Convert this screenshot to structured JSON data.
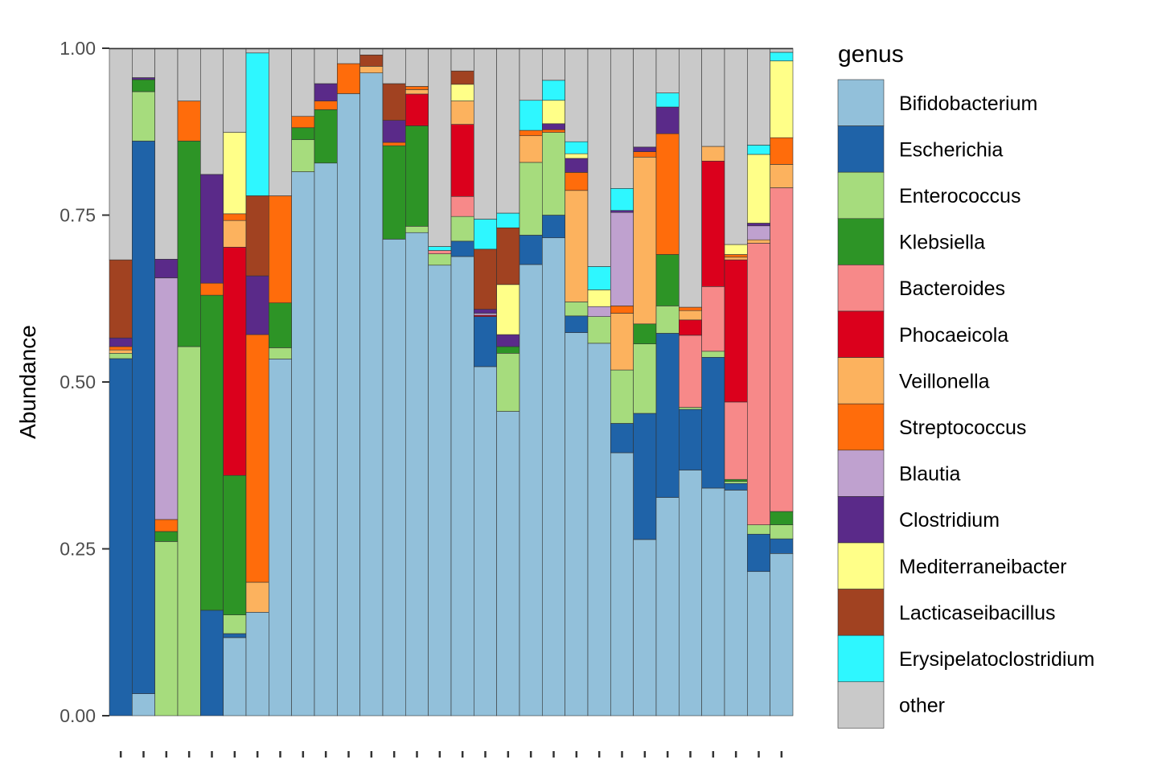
{
  "chart_data": {
    "type": "bar",
    "stacked": true,
    "ylabel": "Abundance",
    "ylim": [
      0,
      1
    ],
    "yticks": [
      0.0,
      0.25,
      0.5,
      0.75,
      1.0
    ],
    "ytick_labels": [
      "0.00",
      "0.25",
      "0.50",
      "0.75",
      "1.00"
    ],
    "categories": [
      "",
      "",
      "",
      "",
      "",
      "",
      "",
      "",
      "",
      "",
      "",
      "",
      "",
      "",
      "",
      "",
      "",
      "",
      "",
      "",
      "",
      "",
      "",
      "",
      "",
      "",
      "",
      "",
      "",
      ""
    ],
    "legend": {
      "title": "genus",
      "position": "right"
    },
    "series": [
      {
        "name": "Bifidobacterium",
        "color": "#92C0DA",
        "values": [
          0,
          0.033,
          0,
          0,
          0,
          0.117,
          0.155,
          0.573,
          0.815,
          0.828,
          0.932,
          0.963,
          0.714,
          0.76,
          0.675,
          0.688,
          0.523,
          0.456,
          0.676,
          0.716,
          0.574,
          0.558,
          0.394,
          0.264,
          0.327,
          0.368,
          0.341,
          0.338,
          0.216,
          0.243
        ]
      },
      {
        "name": "Escherichia",
        "color": "#1F63A8",
        "values": [
          0.535,
          0.828,
          0,
          0,
          0.158,
          0.006,
          0,
          0,
          0,
          0,
          0,
          0,
          0,
          0,
          0,
          0.023,
          0.075,
          0,
          0.044,
          0.034,
          0.025,
          0,
          0.044,
          0.189,
          0.246,
          0.091,
          0.196,
          0.01,
          0.056,
          0.022
        ]
      },
      {
        "name": "Enterococcus",
        "color": "#A6DC7D",
        "values": [
          0.008,
          0.074,
          0.261,
          0.553,
          0,
          0.028,
          0,
          0.018,
          0.048,
          0,
          0,
          0,
          0,
          0.01,
          0.017,
          0.037,
          0,
          0.087,
          0.109,
          0.124,
          0.021,
          0.04,
          0.08,
          0.104,
          0.041,
          0.003,
          0.009,
          0.003,
          0.014,
          0.021
        ]
      },
      {
        "name": "Klebsiella",
        "color": "#2D9426",
        "values": [
          0,
          0.018,
          0.015,
          0.308,
          0.472,
          0.209,
          0,
          0.072,
          0.018,
          0.08,
          0,
          0,
          0.14,
          0.158,
          0,
          0,
          0,
          0.01,
          0,
          0,
          0,
          0,
          0,
          0.03,
          0.077,
          0,
          0,
          0.003,
          0,
          0.02
        ]
      },
      {
        "name": "Bacteroides",
        "color": "#F78989",
        "values": [
          0,
          0,
          0,
          0,
          0,
          0,
          0,
          0,
          0,
          0,
          0,
          0,
          0,
          0,
          0.005,
          0.03,
          0,
          0,
          0,
          0,
          0,
          0,
          0,
          0,
          0,
          0.108,
          0.097,
          0.116,
          0.422,
          0.485
        ]
      },
      {
        "name": "Phocaeicola",
        "color": "#DB001C",
        "values": [
          0,
          0,
          0,
          0,
          0,
          0.342,
          0,
          0,
          0,
          0,
          0,
          0,
          0,
          0.05,
          0,
          0.108,
          0.002,
          0,
          0,
          0,
          0,
          0,
          0,
          0,
          0,
          0.023,
          0.188,
          0.213,
          0,
          0
        ]
      },
      {
        "name": "Veillonella",
        "color": "#FCB25E",
        "values": [
          0.005,
          0,
          0,
          0,
          0,
          0.04,
          0.045,
          0,
          0,
          0,
          0,
          0.01,
          0,
          0.007,
          0,
          0.035,
          0,
          0,
          0.04,
          0,
          0.167,
          0,
          0.085,
          0.25,
          0,
          0.014,
          0.022,
          0.004,
          0.005,
          0.035
        ]
      },
      {
        "name": "Streptococcus",
        "color": "#FF6C0B",
        "values": [
          0.005,
          0,
          0.018,
          0.06,
          0.018,
          0.01,
          0.371,
          0.172,
          0.017,
          0.013,
          0.045,
          0,
          0.005,
          0.005,
          0,
          0,
          0,
          0,
          0.008,
          0.004,
          0.027,
          0,
          0.011,
          0.008,
          0.181,
          0.005,
          0,
          0.004,
          0,
          0.04
        ]
      },
      {
        "name": "Blautia",
        "color": "#BFA1CF",
        "values": [
          0,
          0,
          0.362,
          0,
          0,
          0,
          0,
          0,
          0,
          0,
          0,
          0,
          0,
          0,
          0,
          0,
          0.003,
          0,
          0,
          0,
          0,
          0.015,
          0.14,
          0,
          0,
          0,
          0,
          0,
          0.021,
          0
        ]
      },
      {
        "name": "Clostridium",
        "color": "#5A2A89",
        "values": [
          0.013,
          0.003,
          0.028,
          0,
          0.163,
          0,
          0.088,
          0,
          0,
          0.026,
          0,
          0,
          0.033,
          0,
          0,
          0,
          0.006,
          0.018,
          0,
          0.009,
          0.021,
          0,
          0.003,
          0.007,
          0.04,
          0,
          0,
          0,
          0.004,
          0
        ]
      },
      {
        "name": "Mediterraneibacter",
        "color": "#FFFF88",
        "values": [
          0,
          0,
          0,
          0,
          0,
          0.122,
          0,
          0,
          0,
          0,
          0,
          0,
          0,
          0,
          0,
          0.025,
          0,
          0.075,
          0,
          0.035,
          0.007,
          0.025,
          0,
          0,
          0,
          0,
          0,
          0.015,
          0.103,
          0.115
        ]
      },
      {
        "name": "Lacticaseibacillus",
        "color": "#A14221",
        "values": [
          0.117,
          0,
          0,
          0,
          0,
          0,
          0.12,
          0,
          0,
          0,
          0,
          0.017,
          0.055,
          0,
          0,
          0.02,
          0.09,
          0.085,
          0,
          0,
          0,
          0,
          0,
          0,
          0,
          0,
          0,
          0,
          0,
          0
        ]
      },
      {
        "name": "Erysipelatoclostridium",
        "color": "#2EF7FF",
        "values": [
          0,
          0,
          0,
          0,
          0,
          0,
          0.214,
          0,
          0,
          0,
          0,
          0,
          0,
          0,
          0.006,
          0,
          0.045,
          0.022,
          0.045,
          0.03,
          0.018,
          0.035,
          0.033,
          0,
          0.021,
          0,
          0,
          0,
          0.014,
          0.013
        ]
      },
      {
        "name": "other",
        "color": "#C9C9C9",
        "values": [
          0.317,
          0.044,
          0.316,
          0.079,
          0.189,
          0.126,
          0.007,
          0.237,
          0.102,
          0.053,
          0.023,
          0.01,
          0.053,
          0.06,
          0.297,
          0.034,
          0.256,
          0.247,
          0.078,
          0.048,
          0.14,
          0.327,
          0.21,
          0.148,
          0.067,
          0.388,
          0.147,
          0.294,
          0.145,
          0.006
        ]
      }
    ]
  }
}
